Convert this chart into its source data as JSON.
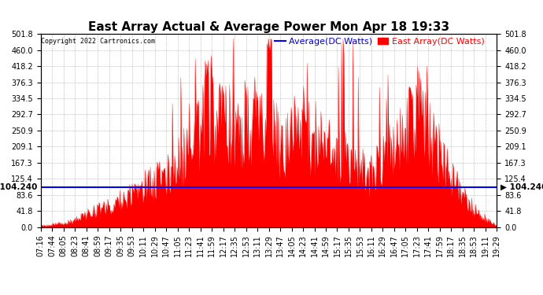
{
  "title": "East Array Actual & Average Power Mon Apr 18 19:33",
  "copyright": "Copyright 2022 Cartronics.com",
  "legend_avg": "Average(DC Watts)",
  "legend_east": "East Array(DC Watts)",
  "avg_value": 104.24,
  "ymin": 0.0,
  "ymax": 501.8,
  "yticks": [
    0.0,
    41.8,
    83.6,
    125.4,
    167.3,
    209.1,
    250.9,
    292.7,
    334.5,
    376.3,
    418.2,
    460.0,
    501.8
  ],
  "avg_line_color": "#0000ff",
  "area_fill_color": "#ff0000",
  "area_edge_color": "#ff0000",
  "background_color": "#ffffff",
  "grid_color": "#888888",
  "title_color": "#000000",
  "copyright_color": "#000000",
  "avg_label_color": "#0000cd",
  "east_label_color": "#ff0000",
  "avg_annotation_color": "#000000",
  "x_tick_labels": [
    "07:16",
    "07:44",
    "08:05",
    "08:23",
    "08:41",
    "08:59",
    "09:17",
    "09:35",
    "09:53",
    "10:11",
    "10:29",
    "10:47",
    "11:05",
    "11:23",
    "11:41",
    "11:59",
    "12:17",
    "12:35",
    "12:53",
    "13:11",
    "13:29",
    "13:47",
    "14:05",
    "14:23",
    "14:41",
    "14:59",
    "15:17",
    "15:35",
    "15:53",
    "16:11",
    "16:29",
    "16:47",
    "17:05",
    "17:23",
    "17:41",
    "17:59",
    "18:17",
    "18:35",
    "18:53",
    "19:11",
    "19:29"
  ],
  "n_ticks": 41,
  "n_points": 600,
  "title_fontsize": 11,
  "tick_fontsize": 7,
  "label_fontsize": 8,
  "avg_annotation_fontsize": 7.5
}
